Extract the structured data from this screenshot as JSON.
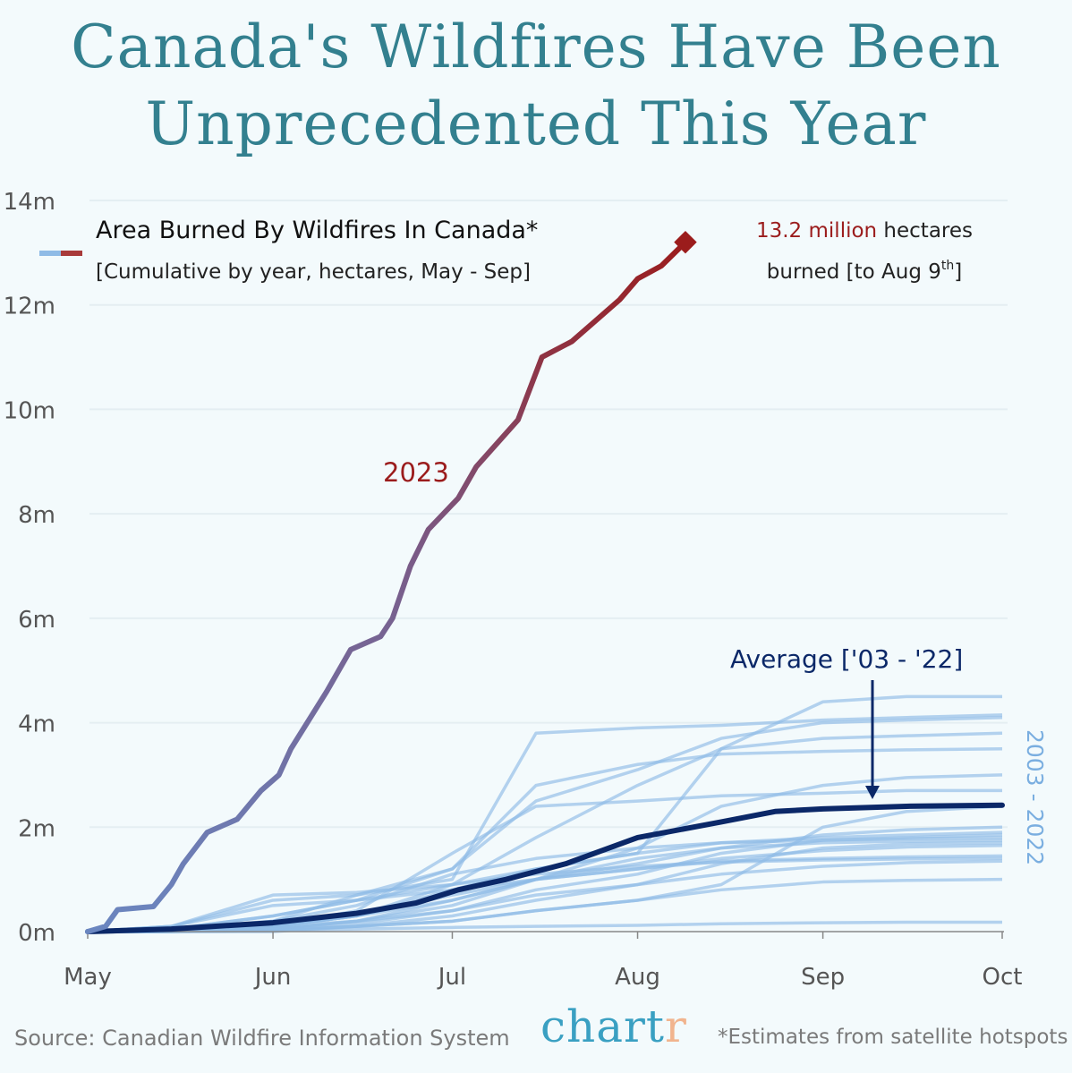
{
  "title": {
    "line1": "Canada's Wildfires Have Been",
    "line2": "Unprecedented This Year"
  },
  "legend": {
    "title": "Area Burned By Wildfires In Canada*",
    "subtitle": "[Cumulative by year, hectares, May - Sep]",
    "swatch_colors": [
      "#8fbbe6",
      "#a83a3a"
    ]
  },
  "annotation": {
    "highlight": "13.2 million",
    "after": " hectares",
    "line2": "burned [to Aug 9",
    "sup": "th",
    "end": "]"
  },
  "footer": {
    "source": "Source: Canadian Wildfire Information System",
    "logo_main": "chart",
    "logo_end": "r",
    "note": "*Estimates from satellite hotspots"
  },
  "colors": {
    "background": "#f3fafc",
    "title": "#33808f",
    "current": "#9b1c1c",
    "current_start": "#6a86c0",
    "average": "#0b2868",
    "history": "#8fbbe6",
    "grid": "#e4eef2",
    "axis": "#555555"
  },
  "chart_data": {
    "type": "line",
    "ylabel": "",
    "xlabel": "",
    "ylim": [
      0,
      14000000
    ],
    "xlim": [
      "05-01",
      "10-01"
    ],
    "grid": "horizontal",
    "yticks": [
      {
        "v": 0,
        "label": "0m"
      },
      {
        "v": 2000000,
        "label": "2m"
      },
      {
        "v": 4000000,
        "label": "4m"
      },
      {
        "v": 6000000,
        "label": "6m"
      },
      {
        "v": 8000000,
        "label": "8m"
      },
      {
        "v": 10000000,
        "label": "10m"
      },
      {
        "v": 12000000,
        "label": "12m"
      },
      {
        "v": 14000000,
        "label": "14m"
      }
    ],
    "xticks": [
      {
        "d": "05-01",
        "label": "May"
      },
      {
        "d": "06-01",
        "label": "Jun"
      },
      {
        "d": "07-01",
        "label": "Jul"
      },
      {
        "d": "08-01",
        "label": "Aug"
      },
      {
        "d": "09-01",
        "label": "Sep"
      },
      {
        "d": "10-01",
        "label": "Oct"
      }
    ],
    "current": {
      "name": "2023",
      "points": [
        [
          "05-01",
          0
        ],
        [
          "05-04",
          100000
        ],
        [
          "05-06",
          420000
        ],
        [
          "05-12",
          480000
        ],
        [
          "05-15",
          900000
        ],
        [
          "05-17",
          1300000
        ],
        [
          "05-21",
          1900000
        ],
        [
          "05-26",
          2150000
        ],
        [
          "05-30",
          2700000
        ],
        [
          "06-02",
          3000000
        ],
        [
          "06-04",
          3500000
        ],
        [
          "06-10",
          4600000
        ],
        [
          "06-14",
          5400000
        ],
        [
          "06-19",
          5650000
        ],
        [
          "06-21",
          6000000
        ],
        [
          "06-24",
          7000000
        ],
        [
          "06-27",
          7700000
        ],
        [
          "07-02",
          8300000
        ],
        [
          "07-05",
          8900000
        ],
        [
          "07-12",
          9800000
        ],
        [
          "07-16",
          11000000
        ],
        [
          "07-21",
          11300000
        ],
        [
          "07-25",
          11700000
        ],
        [
          "07-29",
          12100000
        ],
        [
          "08-01",
          12500000
        ],
        [
          "08-05",
          12750000
        ],
        [
          "08-09",
          13200000
        ]
      ]
    },
    "average": {
      "name": "Average ['03 - '22]",
      "points": [
        [
          "05-01",
          0
        ],
        [
          "05-15",
          50000
        ],
        [
          "06-01",
          170000
        ],
        [
          "06-15",
          350000
        ],
        [
          "06-25",
          550000
        ],
        [
          "07-02",
          800000
        ],
        [
          "07-10",
          1000000
        ],
        [
          "07-20",
          1300000
        ],
        [
          "08-01",
          1800000
        ],
        [
          "08-15",
          2100000
        ],
        [
          "08-24",
          2300000
        ],
        [
          "09-01",
          2350000
        ],
        [
          "09-15",
          2400000
        ],
        [
          "10-01",
          2420000
        ]
      ]
    },
    "history": {
      "name": "2003 - 2022",
      "dates": [
        "05-01",
        "05-15",
        "06-01",
        "06-15",
        "07-01",
        "07-15",
        "08-01",
        "08-15",
        "09-01",
        "09-15",
        "10-01"
      ],
      "series_millions": [
        [
          0,
          0,
          0.1,
          0.3,
          0.8,
          1.2,
          1.5,
          3.5,
          4.4,
          4.5,
          4.5
        ],
        [
          0,
          0.05,
          0.2,
          0.7,
          1.0,
          3.8,
          3.9,
          3.95,
          4.05,
          4.1,
          4.15
        ],
        [
          0,
          0.1,
          0.6,
          0.7,
          1.2,
          2.5,
          3.1,
          3.7,
          4.0,
          4.05,
          4.1
        ],
        [
          0,
          0,
          0.1,
          0.3,
          0.9,
          1.8,
          2.8,
          3.5,
          3.7,
          3.75,
          3.8
        ],
        [
          0,
          0.05,
          0.3,
          0.6,
          1.2,
          2.8,
          3.2,
          3.4,
          3.45,
          3.48,
          3.5
        ],
        [
          0,
          0,
          0.05,
          0.2,
          0.5,
          1.0,
          1.6,
          2.4,
          2.8,
          2.95,
          3.0
        ],
        [
          0,
          0.02,
          0.1,
          0.4,
          1.5,
          2.4,
          2.5,
          2.6,
          2.65,
          2.7,
          2.7
        ],
        [
          0,
          0,
          0.05,
          0.2,
          0.6,
          1.0,
          1.3,
          1.6,
          1.85,
          1.95,
          2.0
        ],
        [
          0,
          0.1,
          0.7,
          0.75,
          0.9,
          1.2,
          1.5,
          1.7,
          1.8,
          1.85,
          1.9
        ],
        [
          0,
          0,
          0.05,
          0.15,
          0.4,
          0.8,
          1.1,
          1.5,
          1.75,
          1.8,
          1.85
        ],
        [
          0,
          0.05,
          0.2,
          0.5,
          1.1,
          1.4,
          1.6,
          1.7,
          1.75,
          1.78,
          1.8
        ],
        [
          0,
          0,
          0.1,
          0.3,
          0.6,
          1.0,
          1.4,
          1.6,
          1.7,
          1.73,
          1.75
        ],
        [
          0,
          0,
          0,
          0.1,
          0.3,
          0.6,
          0.9,
          1.3,
          1.6,
          1.68,
          1.7
        ],
        [
          0,
          0.02,
          0.1,
          0.3,
          0.7,
          1.0,
          1.2,
          1.35,
          1.4,
          1.43,
          1.45
        ],
        [
          0,
          0.05,
          0.3,
          0.6,
          0.9,
          1.1,
          1.25,
          1.33,
          1.37,
          1.39,
          1.4
        ],
        [
          0,
          0,
          0.05,
          0.1,
          0.2,
          0.4,
          0.6,
          0.8,
          0.95,
          0.98,
          1.0
        ],
        [
          0,
          0,
          0.02,
          0.05,
          0.08,
          0.1,
          0.12,
          0.15,
          0.17,
          0.18,
          0.18
        ],
        [
          0,
          0.1,
          0.5,
          0.6,
          0.8,
          1.0,
          1.2,
          1.4,
          1.55,
          1.62,
          1.65
        ],
        [
          0,
          0,
          0.1,
          0.2,
          0.4,
          0.7,
          0.9,
          1.1,
          1.25,
          1.32,
          1.35
        ],
        [
          0,
          0,
          0.02,
          0.1,
          0.2,
          0.4,
          0.6,
          0.9,
          2.0,
          2.3,
          2.4
        ]
      ]
    }
  }
}
